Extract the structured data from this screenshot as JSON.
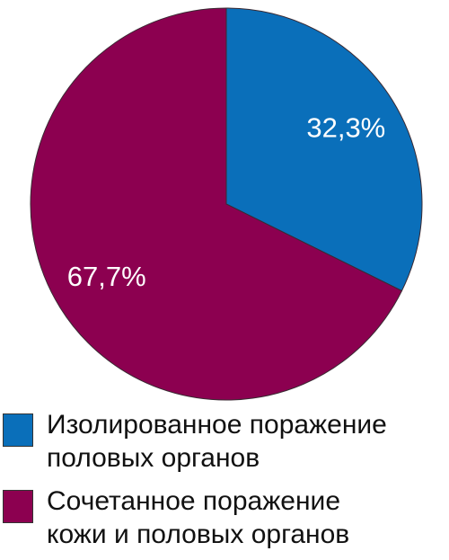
{
  "chart_data": {
    "type": "pie",
    "categories": [
      "Изолированное поражение\nполовых органов",
      "Сочетанное поражение\nкожи и половых органов"
    ],
    "values": [
      32.3,
      67.7
    ],
    "value_labels": [
      "32,3%",
      "67,7%"
    ],
    "colors": [
      "#0a6fba",
      "#8c0050"
    ]
  }
}
